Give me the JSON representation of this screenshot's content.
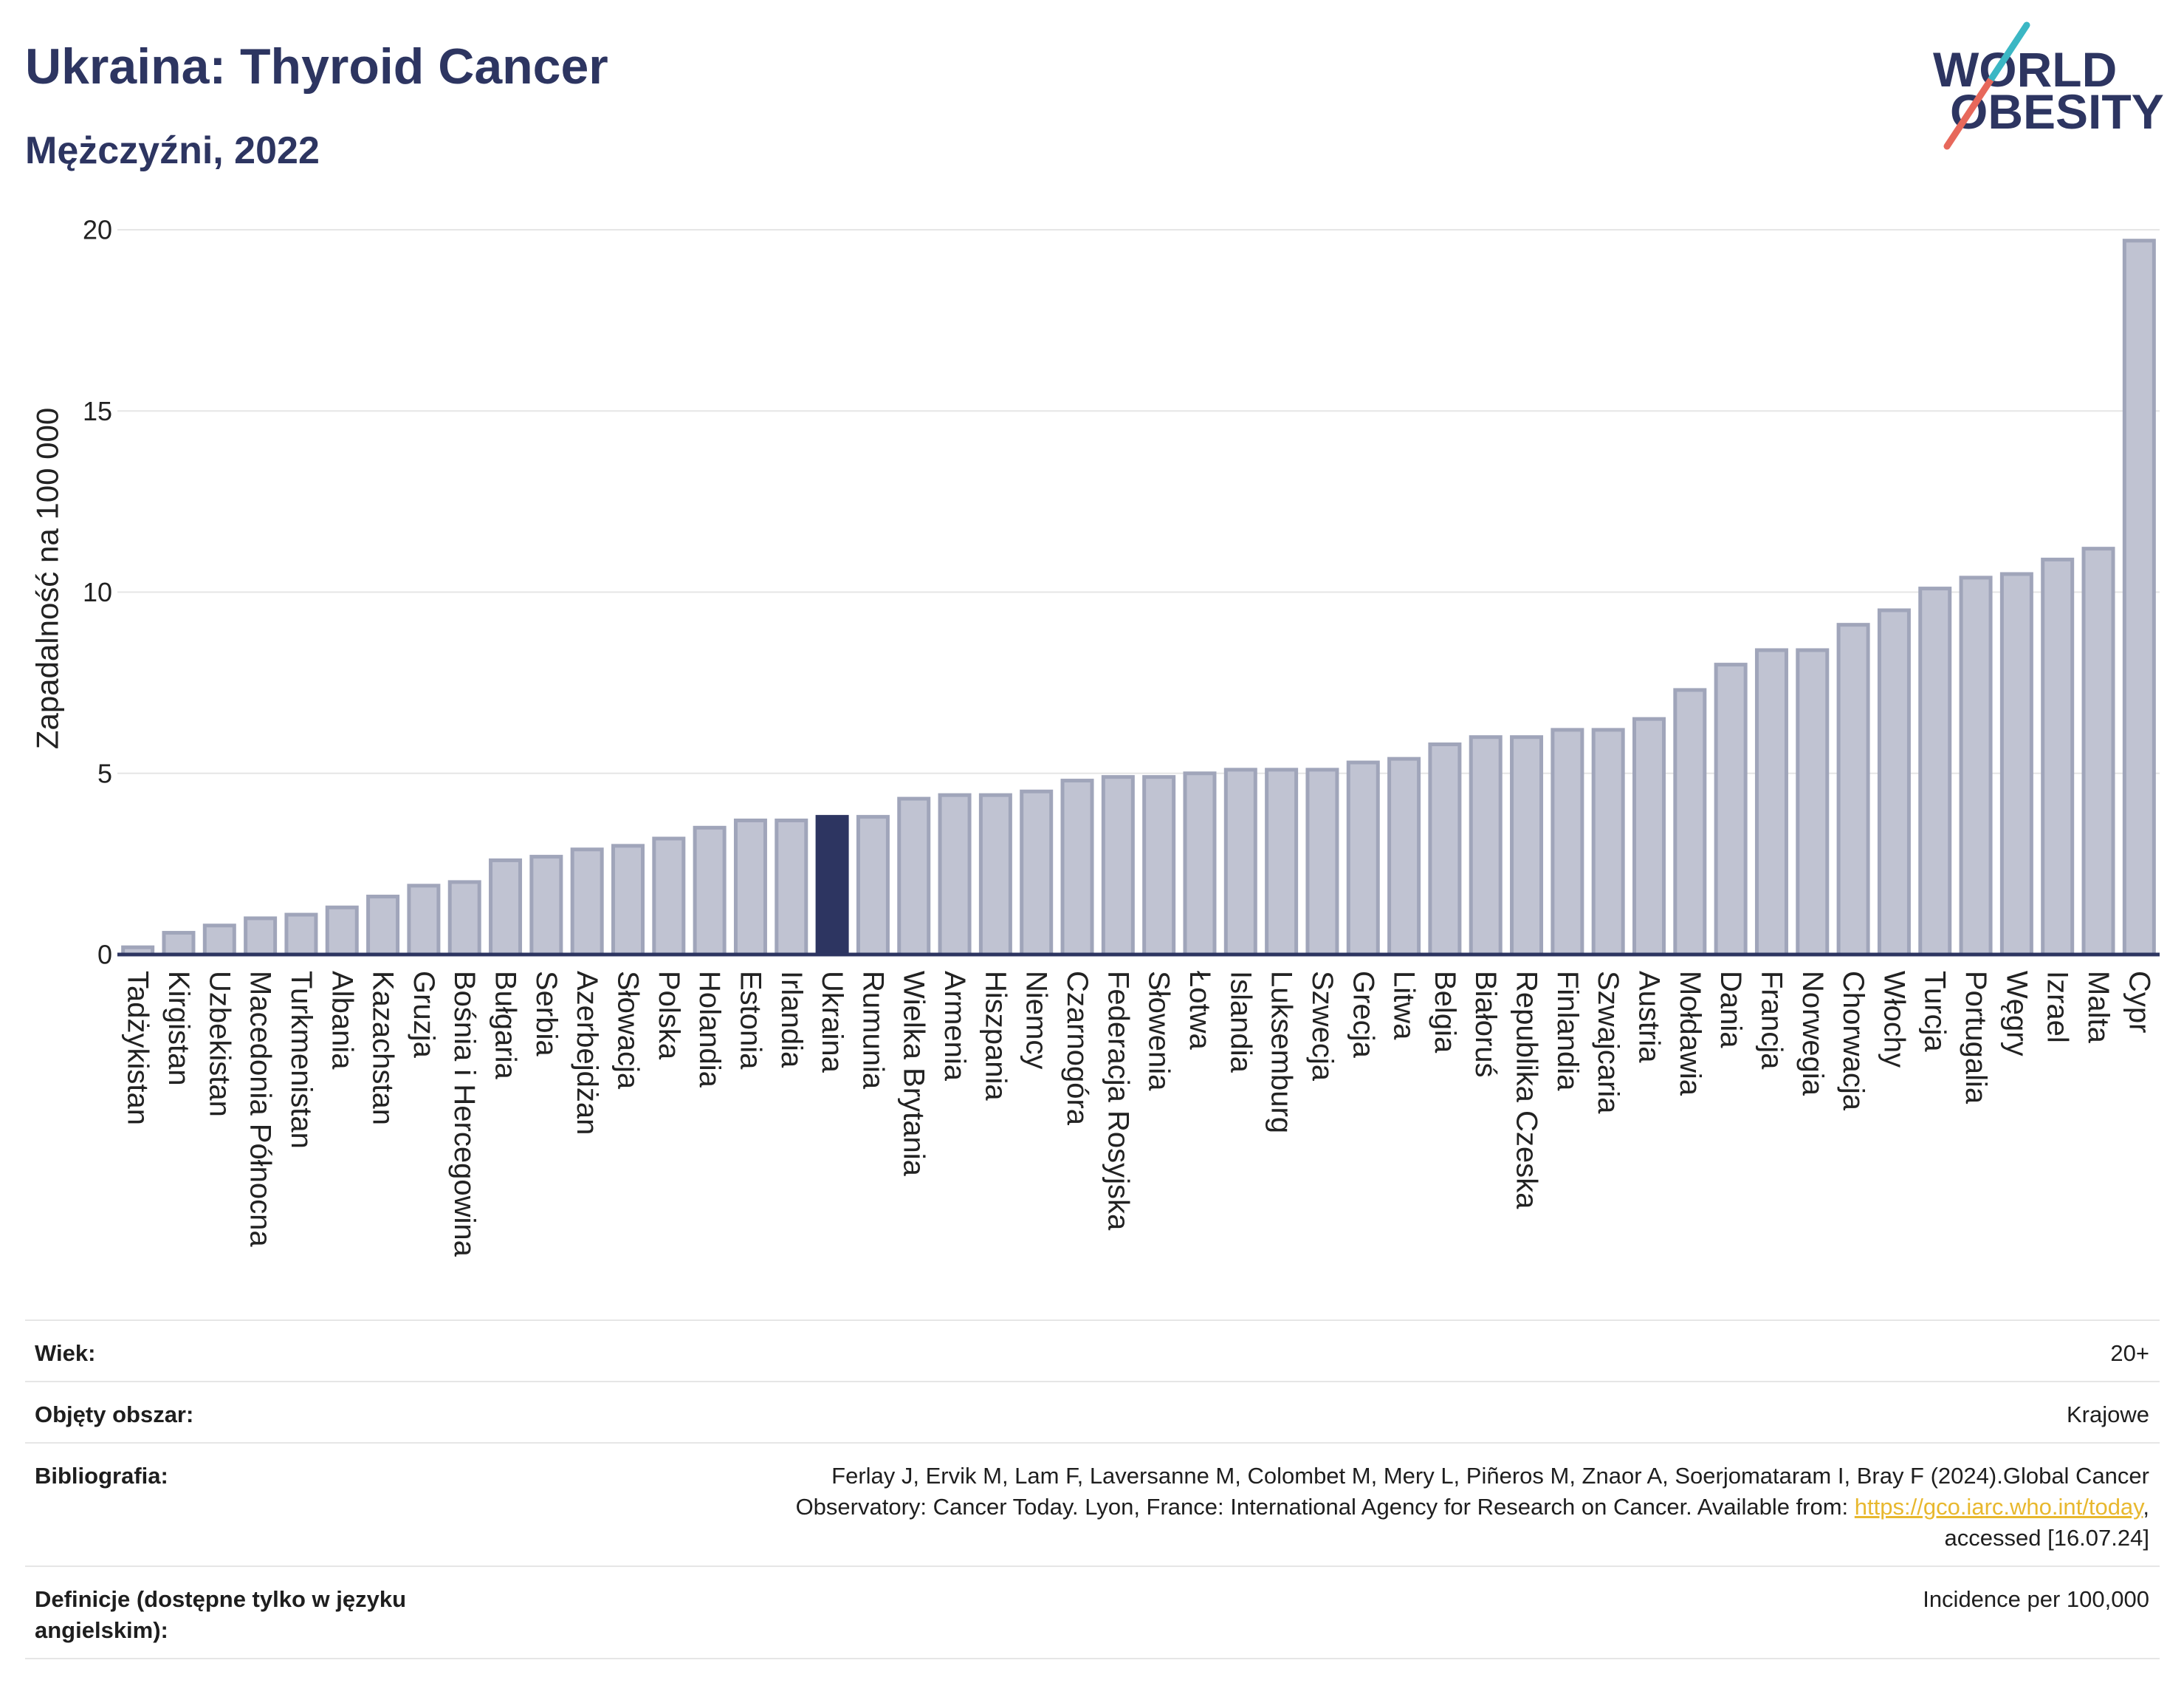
{
  "colors": {
    "title": "#2d3561",
    "bar": "#c0c3d2",
    "bar_stroke": "#a0a5ba",
    "highlight_bar": "#2d3561",
    "axis_line": "#2d3561",
    "gridline": "#e6e6e6",
    "link": "#e8b82e",
    "logo_teal": "#3bb7c4",
    "logo_coral": "#e7685b"
  },
  "logo": {
    "line1": "WORLD",
    "line2": "OBESITY"
  },
  "chart_data": {
    "type": "bar",
    "title": "Ukraina: Thyroid Cancer",
    "subtitle": "Mężczyźni, 2022",
    "ylabel": "Zapadalność na 100 000",
    "ylim": [
      0,
      20
    ],
    "yticks": [
      0,
      5,
      10,
      15,
      20
    ],
    "grid": true,
    "highlight_index": 17,
    "categories": [
      "Tadżykistan",
      "Kirgistan",
      "Uzbekistan",
      "Macedonia Północna",
      "Turkmenistan",
      "Albania",
      "Kazachstan",
      "Gruzja",
      "Bośnia i Hercegowina",
      "Bułgaria",
      "Serbia",
      "Azerbejdżan",
      "Słowacja",
      "Polska",
      "Holandia",
      "Estonia",
      "Irlandia",
      "Ukraina",
      "Rumunia",
      "Wielka Brytania",
      "Armenia",
      "Hiszpania",
      "Niemcy",
      "Czarnogóra",
      "Federacja Rosyjska",
      "Słowenia",
      "Łotwa",
      "Islandia",
      "Luksemburg",
      "Szwecja",
      "Grecja",
      "Litwa",
      "Belgia",
      "Białoruś",
      "Republika Czeska",
      "Finlandia",
      "Szwajcaria",
      "Austria",
      "Mołdawia",
      "Dania",
      "Francja",
      "Norwegia",
      "Chorwacja",
      "Włochy",
      "Turcja",
      "Portugalia",
      "Węgry",
      "Izrael",
      "Malta",
      "Cypr"
    ],
    "values": [
      0.2,
      0.6,
      0.8,
      1.0,
      1.1,
      1.3,
      1.6,
      1.9,
      2.0,
      2.6,
      2.7,
      2.9,
      3.0,
      3.2,
      3.5,
      3.7,
      3.7,
      3.8,
      3.8,
      4.3,
      4.4,
      4.4,
      4.5,
      4.8,
      4.9,
      4.9,
      5.0,
      5.1,
      5.1,
      5.1,
      5.3,
      5.4,
      5.8,
      6.0,
      6.0,
      6.2,
      6.2,
      6.5,
      7.3,
      8.0,
      8.4,
      8.4,
      9.1,
      9.5,
      10.1,
      10.4,
      10.5,
      10.9,
      11.2,
      19.7
    ]
  },
  "info_table": {
    "rows": [
      {
        "label": "Wiek:",
        "value": "20+"
      },
      {
        "label": "Objęty obszar:",
        "value": "Krajowe"
      },
      {
        "label": "Bibliografia:",
        "value_before": "Ferlay J, Ervik M, Lam F, Laversanne M, Colombet M, Mery L, Piñeros M, Znaor A, Soerjomataram I, Bray F (2024).Global Cancer Observatory: Cancer Today. Lyon, France: International Agency for Research on Cancer. Available from: ",
        "link": "https://gco.iarc.who.int/today",
        "value_after": ", accessed [16.07.24]"
      },
      {
        "label": "Definicje (dostępne tylko w języku angielskim):",
        "value": "Incidence per 100,000"
      }
    ]
  }
}
